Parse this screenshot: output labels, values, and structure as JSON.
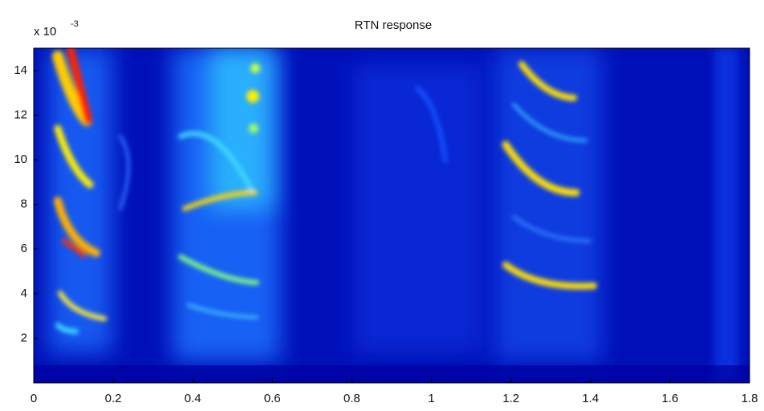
{
  "chart_data": {
    "type": "heatmap",
    "title": "RTN response",
    "scale_label": "x 10",
    "scale_exponent": "-3",
    "xlim": [
      0,
      1.8
    ],
    "xticks": [
      0,
      0.2,
      0.4,
      0.6,
      0.8,
      1,
      1.2,
      1.4,
      1.6,
      1.8
    ],
    "ylim": [
      0,
      15
    ],
    "yticks": [
      2,
      4,
      6,
      8,
      10,
      12,
      14
    ]
  }
}
